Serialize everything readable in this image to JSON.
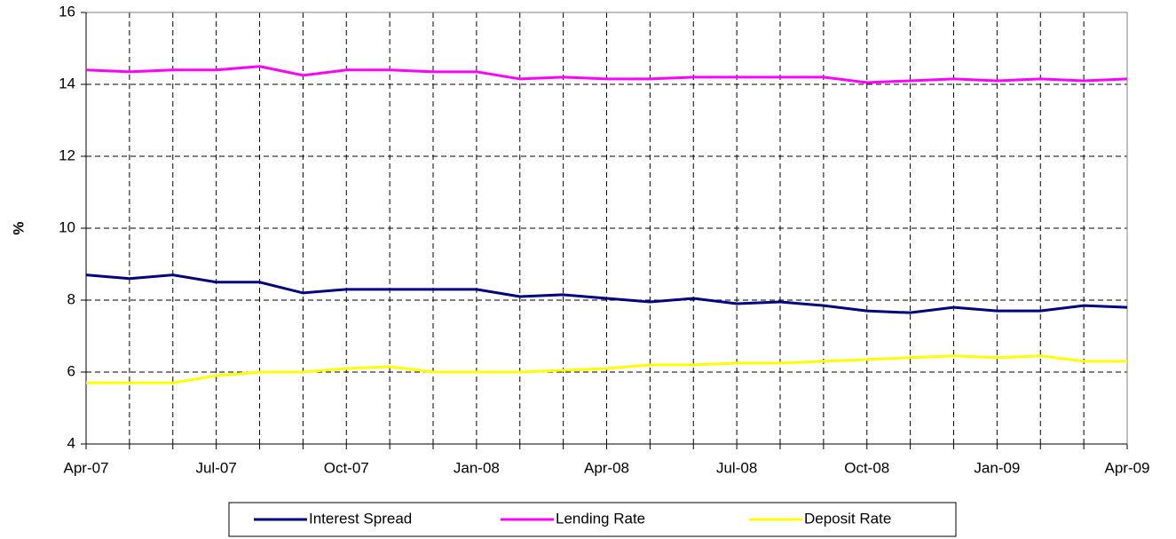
{
  "chart_data": {
    "type": "line",
    "y_label": "%",
    "categories": [
      "Apr-07",
      null,
      null,
      "Jul-07",
      null,
      null,
      "Oct-07",
      null,
      null,
      "Jan-08",
      null,
      null,
      "Apr-08",
      null,
      null,
      "Jul-08",
      null,
      null,
      "Oct-08",
      null,
      null,
      "Jan-09",
      null,
      null,
      "Apr-09"
    ],
    "series": [
      {
        "name": "Interest Spread",
        "color": "#000080",
        "values": [
          8.7,
          8.6,
          8.7,
          8.5,
          8.5,
          8.2,
          8.3,
          8.3,
          8.3,
          8.3,
          8.1,
          8.15,
          8.05,
          7.95,
          8.05,
          7.9,
          7.95,
          7.85,
          7.7,
          7.65,
          7.8,
          7.7,
          7.7,
          7.85,
          7.8
        ]
      },
      {
        "name": "Lending Rate",
        "color": "#ff00ff",
        "values": [
          14.4,
          14.35,
          14.4,
          14.4,
          14.5,
          14.25,
          14.4,
          14.4,
          14.35,
          14.35,
          14.15,
          14.2,
          14.15,
          14.15,
          14.2,
          14.2,
          14.2,
          14.2,
          14.05,
          14.1,
          14.15,
          14.1,
          14.15,
          14.1,
          14.15
        ]
      },
      {
        "name": "Deposit Rate",
        "color": "#ffff00",
        "values": [
          5.7,
          5.7,
          5.7,
          5.9,
          6.0,
          6.0,
          6.1,
          6.15,
          6.0,
          6.0,
          6.0,
          6.05,
          6.1,
          6.2,
          6.2,
          6.25,
          6.25,
          6.3,
          6.35,
          6.4,
          6.45,
          6.4,
          6.45,
          6.3,
          6.3
        ]
      }
    ],
    "ylim": [
      4,
      16
    ],
    "yticks": [
      4,
      6,
      8,
      10,
      12,
      14,
      16
    ],
    "grid": true,
    "legend": "bottom"
  }
}
